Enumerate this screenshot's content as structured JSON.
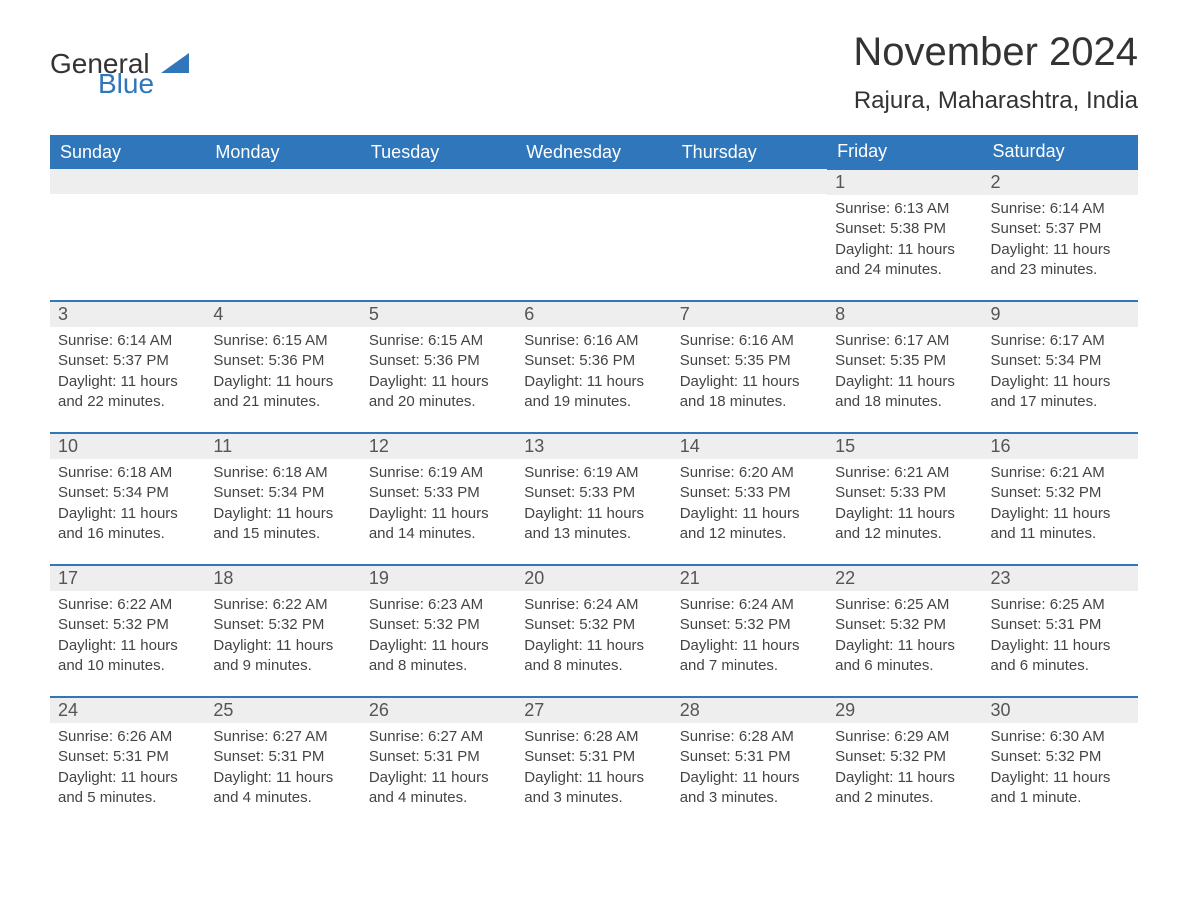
{
  "logo": {
    "general": "General",
    "blue": "Blue"
  },
  "title": "November 2024",
  "location": "Rajura, Maharashtra, India",
  "colors": {
    "header_bg": "#2f76bb",
    "header_text": "#ffffff",
    "daynum_bg": "#eeeeee",
    "daynum_text": "#555555",
    "border_top": "#2f76bb",
    "body_text": "#444444"
  },
  "weekdays": [
    "Sunday",
    "Monday",
    "Tuesday",
    "Wednesday",
    "Thursday",
    "Friday",
    "Saturday"
  ],
  "weeks": [
    [
      null,
      null,
      null,
      null,
      null,
      {
        "n": "1",
        "sunrise": "Sunrise: 6:13 AM",
        "sunset": "Sunset: 5:38 PM",
        "dl1": "Daylight: 11 hours",
        "dl2": "and 24 minutes."
      },
      {
        "n": "2",
        "sunrise": "Sunrise: 6:14 AM",
        "sunset": "Sunset: 5:37 PM",
        "dl1": "Daylight: 11 hours",
        "dl2": "and 23 minutes."
      }
    ],
    [
      {
        "n": "3",
        "sunrise": "Sunrise: 6:14 AM",
        "sunset": "Sunset: 5:37 PM",
        "dl1": "Daylight: 11 hours",
        "dl2": "and 22 minutes."
      },
      {
        "n": "4",
        "sunrise": "Sunrise: 6:15 AM",
        "sunset": "Sunset: 5:36 PM",
        "dl1": "Daylight: 11 hours",
        "dl2": "and 21 minutes."
      },
      {
        "n": "5",
        "sunrise": "Sunrise: 6:15 AM",
        "sunset": "Sunset: 5:36 PM",
        "dl1": "Daylight: 11 hours",
        "dl2": "and 20 minutes."
      },
      {
        "n": "6",
        "sunrise": "Sunrise: 6:16 AM",
        "sunset": "Sunset: 5:36 PM",
        "dl1": "Daylight: 11 hours",
        "dl2": "and 19 minutes."
      },
      {
        "n": "7",
        "sunrise": "Sunrise: 6:16 AM",
        "sunset": "Sunset: 5:35 PM",
        "dl1": "Daylight: 11 hours",
        "dl2": "and 18 minutes."
      },
      {
        "n": "8",
        "sunrise": "Sunrise: 6:17 AM",
        "sunset": "Sunset: 5:35 PM",
        "dl1": "Daylight: 11 hours",
        "dl2": "and 18 minutes."
      },
      {
        "n": "9",
        "sunrise": "Sunrise: 6:17 AM",
        "sunset": "Sunset: 5:34 PM",
        "dl1": "Daylight: 11 hours",
        "dl2": "and 17 minutes."
      }
    ],
    [
      {
        "n": "10",
        "sunrise": "Sunrise: 6:18 AM",
        "sunset": "Sunset: 5:34 PM",
        "dl1": "Daylight: 11 hours",
        "dl2": "and 16 minutes."
      },
      {
        "n": "11",
        "sunrise": "Sunrise: 6:18 AM",
        "sunset": "Sunset: 5:34 PM",
        "dl1": "Daylight: 11 hours",
        "dl2": "and 15 minutes."
      },
      {
        "n": "12",
        "sunrise": "Sunrise: 6:19 AM",
        "sunset": "Sunset: 5:33 PM",
        "dl1": "Daylight: 11 hours",
        "dl2": "and 14 minutes."
      },
      {
        "n": "13",
        "sunrise": "Sunrise: 6:19 AM",
        "sunset": "Sunset: 5:33 PM",
        "dl1": "Daylight: 11 hours",
        "dl2": "and 13 minutes."
      },
      {
        "n": "14",
        "sunrise": "Sunrise: 6:20 AM",
        "sunset": "Sunset: 5:33 PM",
        "dl1": "Daylight: 11 hours",
        "dl2": "and 12 minutes."
      },
      {
        "n": "15",
        "sunrise": "Sunrise: 6:21 AM",
        "sunset": "Sunset: 5:33 PM",
        "dl1": "Daylight: 11 hours",
        "dl2": "and 12 minutes."
      },
      {
        "n": "16",
        "sunrise": "Sunrise: 6:21 AM",
        "sunset": "Sunset: 5:32 PM",
        "dl1": "Daylight: 11 hours",
        "dl2": "and 11 minutes."
      }
    ],
    [
      {
        "n": "17",
        "sunrise": "Sunrise: 6:22 AM",
        "sunset": "Sunset: 5:32 PM",
        "dl1": "Daylight: 11 hours",
        "dl2": "and 10 minutes."
      },
      {
        "n": "18",
        "sunrise": "Sunrise: 6:22 AM",
        "sunset": "Sunset: 5:32 PM",
        "dl1": "Daylight: 11 hours",
        "dl2": "and 9 minutes."
      },
      {
        "n": "19",
        "sunrise": "Sunrise: 6:23 AM",
        "sunset": "Sunset: 5:32 PM",
        "dl1": "Daylight: 11 hours",
        "dl2": "and 8 minutes."
      },
      {
        "n": "20",
        "sunrise": "Sunrise: 6:24 AM",
        "sunset": "Sunset: 5:32 PM",
        "dl1": "Daylight: 11 hours",
        "dl2": "and 8 minutes."
      },
      {
        "n": "21",
        "sunrise": "Sunrise: 6:24 AM",
        "sunset": "Sunset: 5:32 PM",
        "dl1": "Daylight: 11 hours",
        "dl2": "and 7 minutes."
      },
      {
        "n": "22",
        "sunrise": "Sunrise: 6:25 AM",
        "sunset": "Sunset: 5:32 PM",
        "dl1": "Daylight: 11 hours",
        "dl2": "and 6 minutes."
      },
      {
        "n": "23",
        "sunrise": "Sunrise: 6:25 AM",
        "sunset": "Sunset: 5:31 PM",
        "dl1": "Daylight: 11 hours",
        "dl2": "and 6 minutes."
      }
    ],
    [
      {
        "n": "24",
        "sunrise": "Sunrise: 6:26 AM",
        "sunset": "Sunset: 5:31 PM",
        "dl1": "Daylight: 11 hours",
        "dl2": "and 5 minutes."
      },
      {
        "n": "25",
        "sunrise": "Sunrise: 6:27 AM",
        "sunset": "Sunset: 5:31 PM",
        "dl1": "Daylight: 11 hours",
        "dl2": "and 4 minutes."
      },
      {
        "n": "26",
        "sunrise": "Sunrise: 6:27 AM",
        "sunset": "Sunset: 5:31 PM",
        "dl1": "Daylight: 11 hours",
        "dl2": "and 4 minutes."
      },
      {
        "n": "27",
        "sunrise": "Sunrise: 6:28 AM",
        "sunset": "Sunset: 5:31 PM",
        "dl1": "Daylight: 11 hours",
        "dl2": "and 3 minutes."
      },
      {
        "n": "28",
        "sunrise": "Sunrise: 6:28 AM",
        "sunset": "Sunset: 5:31 PM",
        "dl1": "Daylight: 11 hours",
        "dl2": "and 3 minutes."
      },
      {
        "n": "29",
        "sunrise": "Sunrise: 6:29 AM",
        "sunset": "Sunset: 5:32 PM",
        "dl1": "Daylight: 11 hours",
        "dl2": "and 2 minutes."
      },
      {
        "n": "30",
        "sunrise": "Sunrise: 6:30 AM",
        "sunset": "Sunset: 5:32 PM",
        "dl1": "Daylight: 11 hours",
        "dl2": "and 1 minute."
      }
    ]
  ]
}
